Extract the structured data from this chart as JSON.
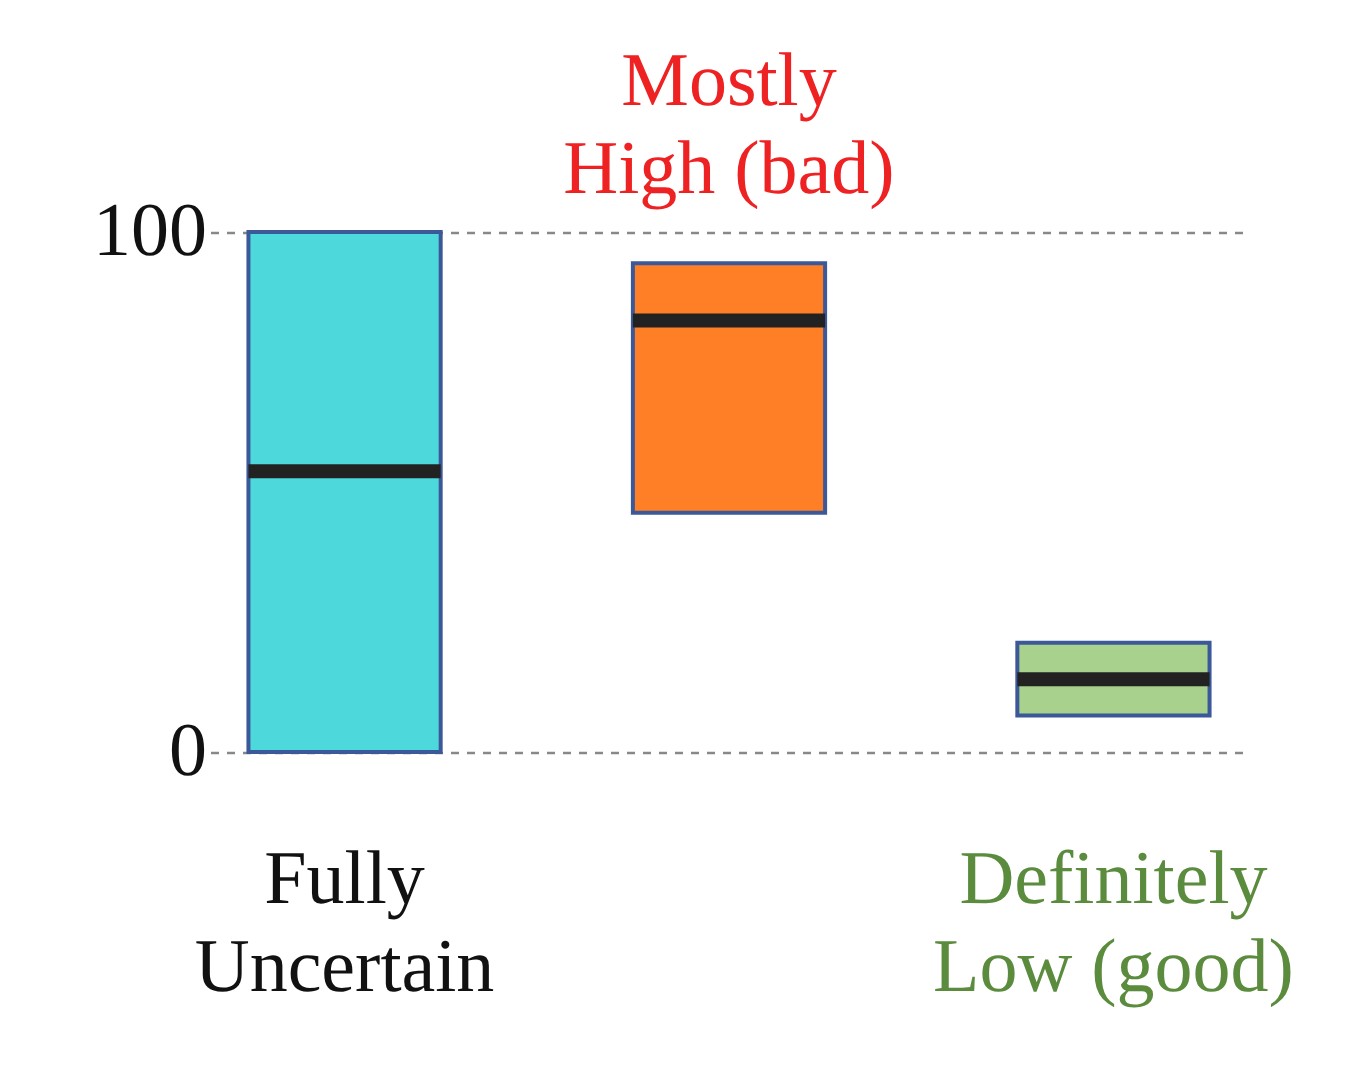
{
  "chart_data": {
    "type": "box",
    "categories": [
      "Fully Uncertain",
      "Mostly High (bad)",
      "Definitely Low (good)"
    ],
    "boxes": [
      {
        "low": 0,
        "q1": 0,
        "median": 54,
        "q3": 100,
        "high": 100
      },
      {
        "low": 46,
        "q1": 46,
        "median": 83,
        "q3": 94,
        "high": 94
      },
      {
        "low": 7,
        "q1": 7,
        "median": 14,
        "q3": 21,
        "high": 21
      }
    ],
    "colors": [
      "#4dd9dc",
      "#ff7f27",
      "#a9d18e"
    ],
    "ylim": [
      0,
      100
    ],
    "yticks": [
      0,
      100
    ],
    "grid": "y",
    "legend": false
  }
}
